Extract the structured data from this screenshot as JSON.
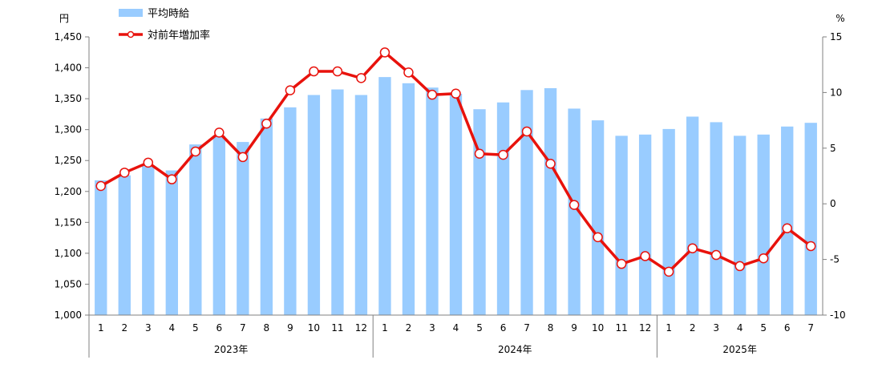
{
  "chart_data": {
    "type": "bar+line",
    "title": "",
    "legend": {
      "placement": "top-left",
      "bar_label": "平均時給",
      "line_label": "対前年増加率"
    },
    "units": {
      "left": "円",
      "right": "%"
    },
    "y_left": {
      "lim": [
        1000,
        1450
      ],
      "step": 50,
      "ticks": [
        "1,000",
        "1,050",
        "1,100",
        "1,150",
        "1,200",
        "1,250",
        "1,300",
        "1,350",
        "1,400",
        "1,450"
      ]
    },
    "y_right": {
      "lim": [
        -10,
        15
      ],
      "step": 5,
      "ticks": [
        "-10",
        "-5",
        "0",
        "5",
        "10",
        "15"
      ]
    },
    "grid": false,
    "colors": {
      "bar": "#99CCFF",
      "line": "#E8120C",
      "marker_fill": "#FFFFFF",
      "axis": "#808080"
    },
    "years": [
      {
        "label": "2023年",
        "months": [
          "1",
          "2",
          "3",
          "4",
          "5",
          "6",
          "7",
          "8",
          "9",
          "10",
          "11",
          "12"
        ]
      },
      {
        "label": "2024年",
        "months": [
          "1",
          "2",
          "3",
          "4",
          "5",
          "6",
          "7",
          "8",
          "9",
          "10",
          "11",
          "12"
        ]
      },
      {
        "label": "2025年",
        "months": [
          "1",
          "2",
          "3",
          "4",
          "5",
          "6",
          "7"
        ]
      }
    ],
    "series": [
      {
        "name": "平均時給",
        "kind": "bar",
        "axis": "left",
        "values": [
          1218,
          1226,
          1241,
          1234,
          1276,
          1290,
          1280,
          1318,
          1336,
          1356,
          1365,
          1356,
          1385,
          1375,
          1368,
          1358,
          1333,
          1344,
          1364,
          1367,
          1334,
          1315,
          1290,
          1292,
          1301,
          1321,
          1312,
          1290,
          1292,
          1305,
          1311
        ]
      },
      {
        "name": "対前年増加率",
        "kind": "line",
        "axis": "right",
        "values": [
          1.6,
          2.8,
          3.7,
          2.2,
          4.7,
          6.4,
          4.2,
          7.2,
          10.2,
          11.9,
          11.9,
          11.3,
          13.6,
          11.8,
          9.8,
          9.9,
          4.5,
          4.4,
          6.5,
          3.6,
          -0.1,
          -3.0,
          -5.4,
          -4.7,
          -6.1,
          -4.0,
          -4.6,
          -5.6,
          -4.9,
          -2.2,
          -3.8
        ]
      }
    ]
  }
}
